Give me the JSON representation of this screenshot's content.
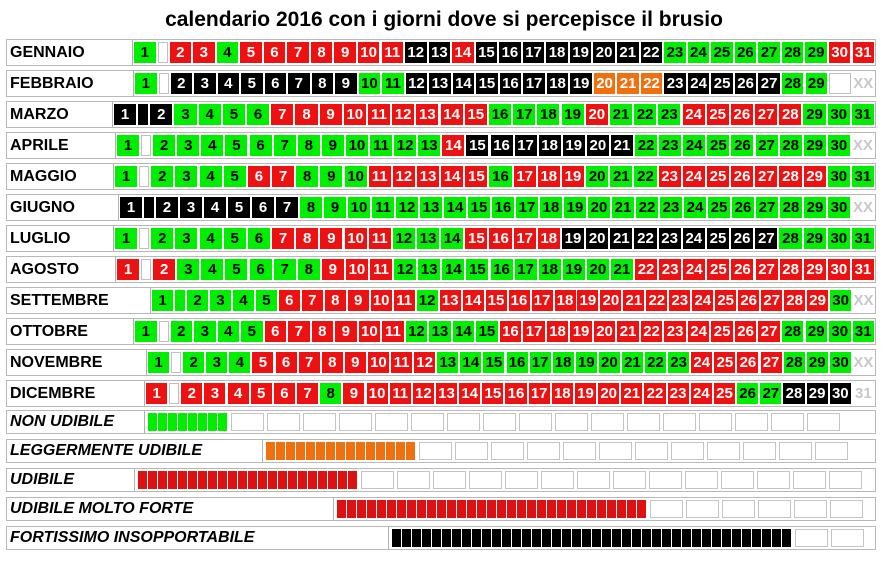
{
  "title": "calendario 2016 con i giorni dove si percepisce il brusio",
  "colors": {
    "green": "#00ee00",
    "red": "#ee1111",
    "black": "#000000",
    "orange": "#f07010"
  },
  "months": [
    {
      "name": "GENNAIO",
      "days": [
        "1",
        "",
        "2",
        "3",
        "4",
        "5",
        "6",
        "7",
        "8",
        "9",
        "10",
        "11",
        "12",
        "13",
        "14",
        "15",
        "16",
        "17",
        "18",
        "19",
        "20",
        "21",
        "22",
        "23",
        "24",
        "25",
        "26",
        "27",
        "28",
        "29",
        "30",
        "31"
      ],
      "colors": [
        "g",
        "w",
        "r",
        "r",
        "g",
        "r",
        "r",
        "r",
        "r",
        "r",
        "r",
        "r",
        "k",
        "k",
        "r",
        "k",
        "k",
        "k",
        "k",
        "k",
        "k",
        "k",
        "k",
        "g",
        "g",
        "g",
        "g",
        "g",
        "g",
        "g",
        "r",
        "r"
      ]
    },
    {
      "name": "FEBBRAIO",
      "days": [
        "1",
        "",
        "2",
        "3",
        "4",
        "5",
        "6",
        "7",
        "8",
        "9",
        "10",
        "11",
        "12",
        "13",
        "14",
        "15",
        "16",
        "17",
        "18",
        "19",
        "20",
        "21",
        "22",
        "23",
        "24",
        "25",
        "26",
        "27",
        "28",
        "29",
        "",
        "XX"
      ],
      "colors": [
        "g",
        "w",
        "k",
        "k",
        "k",
        "k",
        "k",
        "k",
        "k",
        "k",
        "g",
        "g",
        "k",
        "k",
        "k",
        "k",
        "k",
        "k",
        "k",
        "k",
        "o",
        "o",
        "o",
        "k",
        "k",
        "k",
        "k",
        "k",
        "g",
        "g",
        "w",
        "x"
      ]
    },
    {
      "name": "MARZO",
      "days": [
        "1",
        "",
        "2",
        "3",
        "4",
        "5",
        "6",
        "7",
        "8",
        "9",
        "10",
        "11",
        "12",
        "13",
        "14",
        "15",
        "16",
        "17",
        "18",
        "19",
        "20",
        "21",
        "22",
        "23",
        "24",
        "25",
        "26",
        "27",
        "28",
        "29",
        "30",
        "31"
      ],
      "colors": [
        "k",
        "k",
        "k",
        "g",
        "g",
        "g",
        "g",
        "r",
        "r",
        "r",
        "r",
        "r",
        "r",
        "r",
        "r",
        "r",
        "g",
        "g",
        "g",
        "g",
        "r",
        "g",
        "g",
        "g",
        "r",
        "r",
        "r",
        "r",
        "r",
        "g",
        "g",
        "g"
      ]
    },
    {
      "name": "APRILE",
      "days": [
        "1",
        "",
        "2",
        "3",
        "4",
        "5",
        "6",
        "7",
        "8",
        "9",
        "10",
        "11",
        "12",
        "13",
        "14",
        "15",
        "16",
        "17",
        "18",
        "19",
        "20",
        "21",
        "22",
        "23",
        "24",
        "25",
        "26",
        "27",
        "28",
        "29",
        "30",
        "XX"
      ],
      "colors": [
        "g",
        "w",
        "g",
        "g",
        "g",
        "g",
        "g",
        "g",
        "g",
        "g",
        "g",
        "g",
        "g",
        "g",
        "r",
        "k",
        "k",
        "k",
        "k",
        "k",
        "k",
        "k",
        "g",
        "g",
        "g",
        "g",
        "g",
        "g",
        "g",
        "g",
        "g",
        "x"
      ]
    },
    {
      "name": "MAGGIO",
      "days": [
        "1",
        "",
        "2",
        "3",
        "4",
        "5",
        "6",
        "7",
        "8",
        "9",
        "10",
        "11",
        "12",
        "13",
        "14",
        "15",
        "16",
        "17",
        "18",
        "19",
        "20",
        "21",
        "22",
        "23",
        "24",
        "25",
        "26",
        "27",
        "28",
        "29",
        "30",
        "31"
      ],
      "colors": [
        "g",
        "w",
        "g",
        "g",
        "g",
        "g",
        "r",
        "r",
        "g",
        "g",
        "g",
        "r",
        "r",
        "r",
        "r",
        "r",
        "g",
        "r",
        "r",
        "r",
        "g",
        "g",
        "g",
        "r",
        "r",
        "r",
        "r",
        "r",
        "r",
        "r",
        "g",
        "g"
      ]
    },
    {
      "name": "GIUGNO",
      "days": [
        "1",
        "",
        "2",
        "3",
        "4",
        "5",
        "6",
        "7",
        "8",
        "9",
        "10",
        "11",
        "12",
        "13",
        "14",
        "15",
        "16",
        "17",
        "18",
        "19",
        "20",
        "21",
        "22",
        "23",
        "24",
        "25",
        "26",
        "27",
        "28",
        "29",
        "30",
        "XX"
      ],
      "colors": [
        "k",
        "k",
        "k",
        "k",
        "k",
        "k",
        "k",
        "k",
        "g",
        "g",
        "g",
        "g",
        "g",
        "g",
        "g",
        "g",
        "g",
        "g",
        "g",
        "g",
        "g",
        "g",
        "g",
        "g",
        "g",
        "g",
        "g",
        "g",
        "g",
        "g",
        "g",
        "x"
      ]
    },
    {
      "name": "LUGLIO",
      "days": [
        "1",
        "",
        "2",
        "3",
        "4",
        "5",
        "6",
        "7",
        "8",
        "9",
        "10",
        "11",
        "12",
        "13",
        "14",
        "15",
        "16",
        "17",
        "18",
        "19",
        "20",
        "21",
        "22",
        "23",
        "24",
        "25",
        "26",
        "27",
        "28",
        "29",
        "30",
        "31"
      ],
      "colors": [
        "g",
        "w",
        "g",
        "g",
        "g",
        "g",
        "g",
        "r",
        "r",
        "r",
        "r",
        "r",
        "g",
        "g",
        "g",
        "r",
        "r",
        "r",
        "r",
        "k",
        "k",
        "k",
        "k",
        "k",
        "k",
        "k",
        "k",
        "k",
        "g",
        "g",
        "g",
        "g"
      ]
    },
    {
      "name": "AGOSTO",
      "days": [
        "1",
        "",
        "2",
        "3",
        "4",
        "5",
        "6",
        "7",
        "8",
        "9",
        "10",
        "11",
        "12",
        "13",
        "14",
        "15",
        "16",
        "17",
        "18",
        "19",
        "20",
        "21",
        "22",
        "23",
        "24",
        "25",
        "26",
        "27",
        "28",
        "29",
        "30",
        "31"
      ],
      "colors": [
        "r",
        "w",
        "r",
        "g",
        "g",
        "g",
        "g",
        "g",
        "g",
        "r",
        "r",
        "r",
        "g",
        "g",
        "g",
        "g",
        "g",
        "g",
        "g",
        "g",
        "g",
        "g",
        "r",
        "r",
        "r",
        "r",
        "r",
        "r",
        "r",
        "r",
        "r",
        "r"
      ]
    },
    {
      "name": "SETTEMBRE",
      "days": [
        "1",
        "",
        "2",
        "3",
        "4",
        "5",
        "6",
        "7",
        "8",
        "9",
        "10",
        "11",
        "12",
        "13",
        "14",
        "15",
        "16",
        "17",
        "18",
        "19",
        "20",
        "21",
        "22",
        "23",
        "24",
        "25",
        "26",
        "27",
        "28",
        "29",
        "30",
        "XX"
      ],
      "colors": [
        "g",
        "g",
        "g",
        "g",
        "g",
        "g",
        "r",
        "r",
        "r",
        "r",
        "r",
        "r",
        "g",
        "r",
        "r",
        "r",
        "r",
        "r",
        "r",
        "r",
        "r",
        "r",
        "r",
        "r",
        "r",
        "r",
        "r",
        "r",
        "r",
        "r",
        "g",
        "x"
      ]
    },
    {
      "name": "OTTOBRE",
      "days": [
        "1",
        "",
        "2",
        "3",
        "4",
        "5",
        "6",
        "7",
        "8",
        "9",
        "10",
        "11",
        "12",
        "13",
        "14",
        "15",
        "16",
        "17",
        "18",
        "19",
        "20",
        "21",
        "22",
        "23",
        "24",
        "25",
        "26",
        "27",
        "28",
        "29",
        "30",
        "31"
      ],
      "colors": [
        "g",
        "w",
        "g",
        "g",
        "g",
        "g",
        "r",
        "r",
        "r",
        "r",
        "r",
        "r",
        "g",
        "g",
        "g",
        "g",
        "r",
        "r",
        "r",
        "r",
        "r",
        "r",
        "r",
        "r",
        "r",
        "r",
        "r",
        "r",
        "g",
        "g",
        "g",
        "g"
      ]
    },
    {
      "name": "NOVEMBRE",
      "days": [
        "1",
        "",
        "2",
        "3",
        "4",
        "5",
        "6",
        "7",
        "8",
        "9",
        "10",
        "11",
        "12",
        "13",
        "14",
        "15",
        "16",
        "17",
        "18",
        "19",
        "20",
        "21",
        "22",
        "23",
        "24",
        "25",
        "26",
        "27",
        "28",
        "29",
        "30",
        "XX"
      ],
      "colors": [
        "g",
        "w",
        "g",
        "g",
        "g",
        "r",
        "r",
        "r",
        "r",
        "r",
        "r",
        "r",
        "r",
        "g",
        "g",
        "g",
        "g",
        "g",
        "g",
        "g",
        "g",
        "g",
        "g",
        "g",
        "r",
        "r",
        "r",
        "r",
        "g",
        "g",
        "g",
        "x"
      ]
    },
    {
      "name": "DICEMBRE",
      "days": [
        "1",
        "",
        "2",
        "3",
        "4",
        "5",
        "6",
        "7",
        "8",
        "9",
        "10",
        "11",
        "12",
        "13",
        "14",
        "15",
        "16",
        "17",
        "18",
        "19",
        "20",
        "21",
        "22",
        "23",
        "24",
        "25",
        "26",
        "27",
        "28",
        "29",
        "30",
        "31"
      ],
      "colors": [
        "r",
        "w",
        "r",
        "r",
        "r",
        "r",
        "r",
        "r",
        "g",
        "r",
        "r",
        "r",
        "r",
        "r",
        "r",
        "r",
        "r",
        "r",
        "r",
        "r",
        "r",
        "r",
        "r",
        "r",
        "r",
        "r",
        "g",
        "g",
        "k",
        "k",
        "k",
        "x"
      ]
    }
  ],
  "legend": [
    {
      "label": "NON UDIBILE",
      "color": "g",
      "count": 8
    },
    {
      "label": "LEGGERMENTE UDIBILE",
      "color": "o",
      "count": 15
    },
    {
      "label": "UDIBILE",
      "color": "r",
      "count": 22
    },
    {
      "label": "UDIBILE MOLTO FORTE",
      "color": "r",
      "count": 31
    },
    {
      "label": "FORTISSIMO INSOPPORTABILE",
      "color": "k",
      "count": 40
    }
  ]
}
